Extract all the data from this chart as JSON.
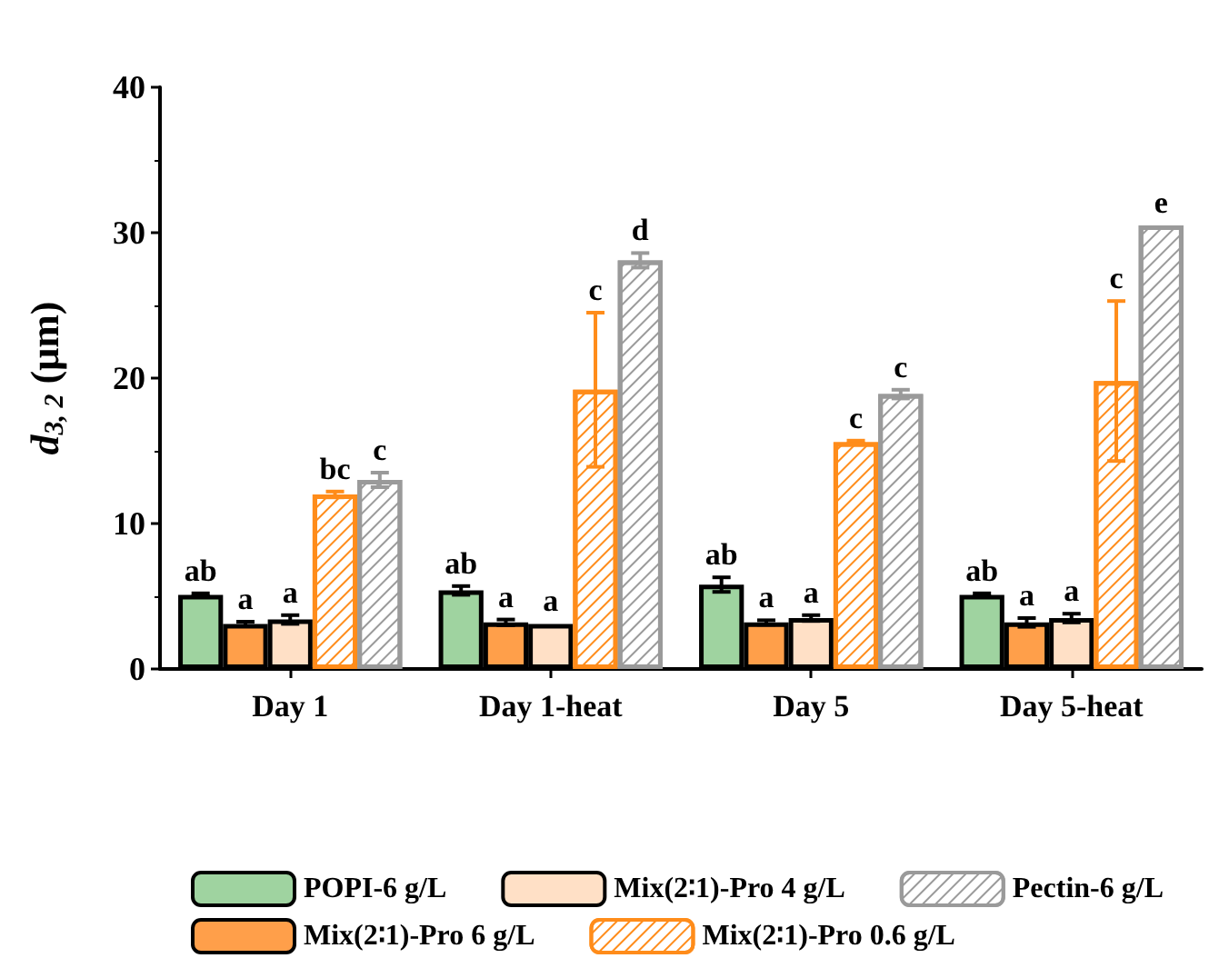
{
  "chart_data": {
    "type": "bar",
    "ylabel": "d$_{3, 2}$ (μm)",
    "categories": [
      "Day 1",
      "Day 1-heat",
      "Day 5",
      "Day 5-heat"
    ],
    "series": [
      {
        "name": "POPI-6 g/L",
        "color": "#9fd3a0",
        "values": [
          5.1,
          5.4,
          5.8,
          5.1
        ],
        "errors": [
          0.1,
          0.3,
          0.5,
          0.1
        ],
        "value_labels": [
          "ab",
          "ab",
          "ab",
          "ab"
        ]
      },
      {
        "name": "Mix(2∶1)-Pro 6 g/L",
        "color": "#ff9f4a",
        "values": [
          3.1,
          3.2,
          3.2,
          3.2
        ],
        "errors": [
          0.15,
          0.2,
          0.15,
          0.3
        ],
        "value_labels": [
          "a",
          "a",
          "a",
          "a"
        ]
      },
      {
        "name": "Mix(2∶1)-Pro 4 g/L",
        "color": "#ffe0c6",
        "values": [
          3.4,
          3.1,
          3.5,
          3.5
        ],
        "errors": [
          0.3,
          null,
          0.2,
          0.3
        ],
        "value_labels": [
          "a",
          "a",
          "a",
          "a"
        ]
      },
      {
        "name": "Mix(2∶1)-Pro 0.6 g/L",
        "color": "#ff8c1a",
        "values": [
          12.0,
          19.2,
          15.6,
          19.8
        ],
        "errors": [
          0.2,
          5.3,
          0.1,
          5.5
        ],
        "value_labels": [
          "bc",
          "c",
          "c",
          "c"
        ]
      },
      {
        "name": "Pectin-6 g/L",
        "color": "#9a9a9a",
        "values": [
          13.0,
          28.1,
          18.9,
          30.5
        ],
        "errors": [
          0.5,
          0.5,
          0.3,
          null
        ],
        "value_labels": [
          "c",
          "d",
          "c",
          "e"
        ]
      }
    ],
    "ylim": [
      0,
      40
    ],
    "yticks": [
      0,
      10,
      20,
      30,
      40
    ],
    "grid": false,
    "legend": "bottom"
  }
}
